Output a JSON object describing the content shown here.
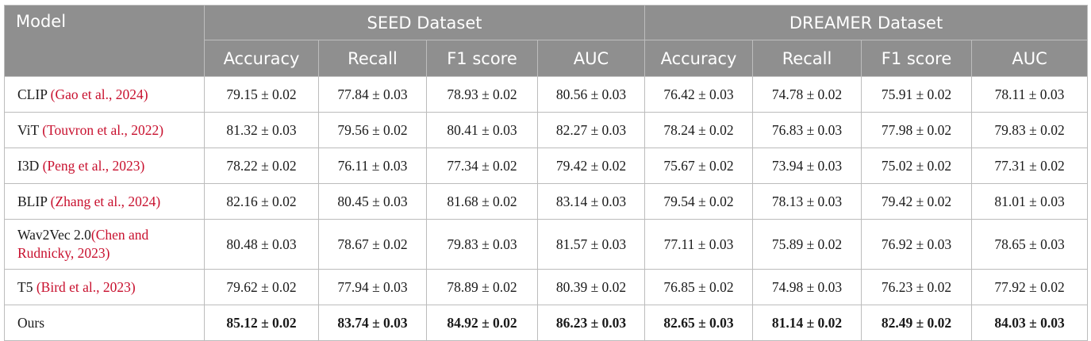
{
  "header": {
    "model": "Model",
    "group_seed": "SEED Dataset",
    "group_dreamer": "DREAMER Dataset",
    "metrics": [
      "Accuracy",
      "Recall",
      "F1 score",
      "AUC",
      "Accuracy",
      "Recall",
      "F1 score",
      "AUC"
    ]
  },
  "rows": [
    {
      "name": "CLIP ",
      "ref": "(Gao et al., 2024)",
      "values": [
        "79.15 ± 0.02",
        "77.84 ± 0.03",
        "78.93 ± 0.02",
        "80.56 ± 0.03",
        "76.42 ± 0.03",
        "74.78 ± 0.02",
        "75.91 ± 0.02",
        "78.11 ± 0.03"
      ]
    },
    {
      "name": "ViT ",
      "ref": "(Touvron et al., 2022)",
      "values": [
        "81.32 ± 0.03",
        "79.56 ± 0.02",
        "80.41 ± 0.03",
        "82.27 ± 0.03",
        "78.24 ± 0.02",
        "76.83 ± 0.03",
        "77.98 ± 0.02",
        "79.83 ± 0.02"
      ]
    },
    {
      "name": "I3D ",
      "ref": "(Peng et al., 2023)",
      "values": [
        "78.22 ± 0.02",
        "76.11 ± 0.03",
        "77.34 ± 0.02",
        "79.42 ± 0.02",
        "75.67 ± 0.02",
        "73.94 ± 0.03",
        "75.02 ± 0.02",
        "77.31 ± 0.02"
      ]
    },
    {
      "name": "BLIP ",
      "ref": "(Zhang et al., 2024)",
      "values": [
        "82.16 ± 0.02",
        "80.45 ± 0.03",
        "81.68 ± 0.02",
        "83.14 ± 0.03",
        "79.54 ± 0.02",
        "78.13 ± 0.03",
        "79.42 ± 0.02",
        "81.01 ± 0.03"
      ]
    },
    {
      "name": "Wav2Vec 2.0",
      "ref": "(Chen and Rudnicky, 2023)",
      "values": [
        "80.48 ± 0.03",
        "78.67 ± 0.02",
        "79.83 ± 0.03",
        "81.57 ± 0.03",
        "77.11 ± 0.03",
        "75.89 ± 0.02",
        "76.92 ± 0.03",
        "78.65 ± 0.03"
      ]
    },
    {
      "name": "T5 ",
      "ref": "(Bird et al., 2023)",
      "values": [
        "79.62 ± 0.02",
        "77.94 ± 0.03",
        "78.89 ± 0.02",
        "80.39 ± 0.02",
        "76.85 ± 0.02",
        "74.98 ± 0.03",
        "76.23 ± 0.02",
        "77.92 ± 0.02"
      ]
    },
    {
      "name": "Ours",
      "ref": "",
      "values": [
        "85.12 ± 0.02",
        "83.74 ± 0.03",
        "84.92 ± 0.02",
        "86.23 ± 0.03",
        "82.65 ± 0.03",
        "81.14 ± 0.02",
        "82.49 ± 0.02",
        "84.03 ± 0.03"
      ]
    }
  ]
}
